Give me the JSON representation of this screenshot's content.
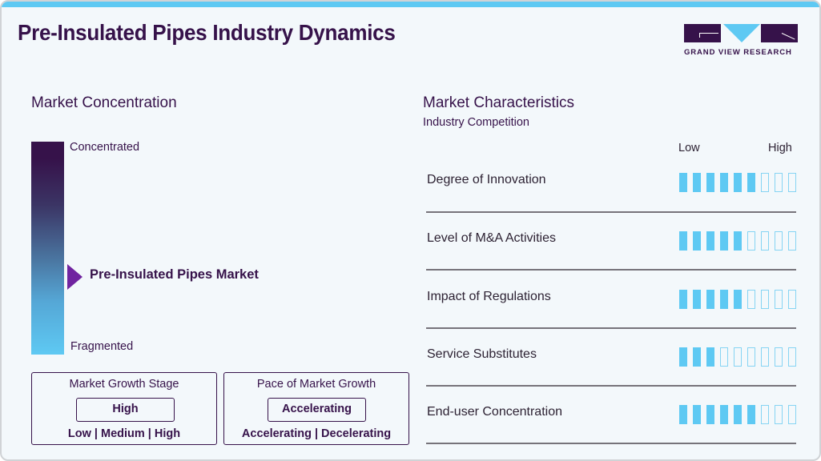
{
  "header": {
    "title": "Pre-Insulated Pipes Industry Dynamics",
    "logo_text": "GRAND VIEW RESEARCH"
  },
  "colors": {
    "accent_blue": "#5ec9f3",
    "brand_purple": "#36124a",
    "marker_purple": "#7024a0"
  },
  "concentration": {
    "title": "Market Concentration",
    "top_label": "Concentrated",
    "bottom_label": "Fragmented",
    "marker_label": "Pre-Insulated Pipes Market"
  },
  "growth_stage": {
    "title": "Market Growth Stage",
    "value": "High",
    "options": "Low  |  Medium  |  High"
  },
  "growth_pace": {
    "title": "Pace of Market Growth",
    "value": "Accelerating",
    "options": "Accelerating  |  Decelerating"
  },
  "characteristics": {
    "title": "Market Characteristics",
    "subtitle": "Industry Competition",
    "scale_low": "Low",
    "scale_high": "High",
    "max_level": 9,
    "items": [
      {
        "label": "Degree of Innovation",
        "level": 6
      },
      {
        "label": "Level of M&A Activities",
        "level": 5
      },
      {
        "label": "Impact of Regulations",
        "level": 5
      },
      {
        "label": "Service Substitutes",
        "level": 3
      },
      {
        "label": "End-user Concentration",
        "level": 6
      }
    ]
  },
  "chart_data": {
    "type": "table",
    "title": "Pre-Insulated Pipes Industry Dynamics",
    "market_concentration": "between Fragmented and Concentrated (lower-middle)",
    "market_growth_stage": "High",
    "pace_of_market_growth": "Accelerating",
    "scale": {
      "min_label": "Low",
      "max_label": "High",
      "max": 9
    },
    "categories": [
      "Degree of Innovation",
      "Level of M&A Activities",
      "Impact of Regulations",
      "Service Substitutes",
      "End-user Concentration"
    ],
    "values": [
      6,
      5,
      5,
      3,
      6
    ]
  }
}
